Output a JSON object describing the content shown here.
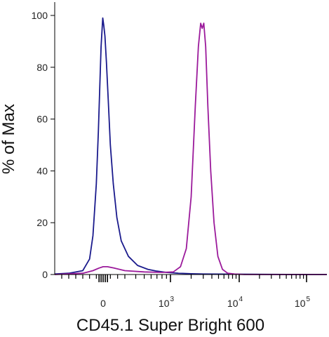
{
  "chart_data": {
    "type": "line",
    "xlabel": "CD45.1 Super Bright 600",
    "ylabel": "% of Max",
    "x_scale": "biexponential",
    "xlim": [
      -700,
      100000
    ],
    "ylim": [
      0,
      100
    ],
    "grid": false,
    "legend": "none",
    "y_ticks": [
      {
        "value": 0,
        "label": "0"
      },
      {
        "value": 20,
        "label": "20"
      },
      {
        "value": 40,
        "label": "40"
      },
      {
        "value": 60,
        "label": "60"
      },
      {
        "value": 80,
        "label": "80"
      },
      {
        "value": 100,
        "label": "100"
      }
    ],
    "x_ticks": [
      {
        "value": 0,
        "base": "0",
        "exp": ""
      },
      {
        "value": 1000,
        "base": "10",
        "exp": "3"
      },
      {
        "value": 10000,
        "base": "10",
        "exp": "4"
      },
      {
        "value": 100000,
        "base": "10",
        "exp": "5"
      }
    ],
    "series": [
      {
        "color": "#1a1a8c",
        "points": [
          [
            -700,
            0.2
          ],
          [
            -500,
            0.5
          ],
          [
            -300,
            1.5
          ],
          [
            -200,
            6
          ],
          [
            -150,
            15
          ],
          [
            -100,
            35
          ],
          [
            -70,
            55
          ],
          [
            -50,
            72
          ],
          [
            -30,
            88
          ],
          [
            -15,
            95
          ],
          [
            -5,
            99
          ],
          [
            0,
            98
          ],
          [
            10,
            96
          ],
          [
            25,
            92
          ],
          [
            45,
            82
          ],
          [
            70,
            68
          ],
          [
            100,
            50
          ],
          [
            140,
            35
          ],
          [
            190,
            22
          ],
          [
            250,
            13
          ],
          [
            330,
            7
          ],
          [
            420,
            3.5
          ],
          [
            550,
            2
          ],
          [
            700,
            1.3
          ],
          [
            900,
            0.8
          ],
          [
            1300,
            0.5
          ],
          [
            2000,
            0.3
          ],
          [
            3000,
            0.2
          ],
          [
            100000,
            0
          ]
        ]
      },
      {
        "color": "#9b1a9b",
        "points": [
          [
            -700,
            0
          ],
          [
            -300,
            0.5
          ],
          [
            -150,
            1.5
          ],
          [
            -60,
            2.5
          ],
          [
            0,
            3
          ],
          [
            60,
            3
          ],
          [
            150,
            2.5
          ],
          [
            300,
            1.5
          ],
          [
            500,
            1
          ],
          [
            800,
            0.8
          ],
          [
            1100,
            1
          ],
          [
            1400,
            3
          ],
          [
            1700,
            10
          ],
          [
            2000,
            30
          ],
          [
            2300,
            65
          ],
          [
            2550,
            88
          ],
          [
            2750,
            97
          ],
          [
            2900,
            95
          ],
          [
            3050,
            97
          ],
          [
            3250,
            88
          ],
          [
            3500,
            65
          ],
          [
            3850,
            40
          ],
          [
            4300,
            20
          ],
          [
            4900,
            7
          ],
          [
            5700,
            2
          ],
          [
            6800,
            0.5
          ],
          [
            8500,
            0.2
          ],
          [
            12000,
            0
          ],
          [
            100000,
            0
          ]
        ]
      }
    ]
  }
}
